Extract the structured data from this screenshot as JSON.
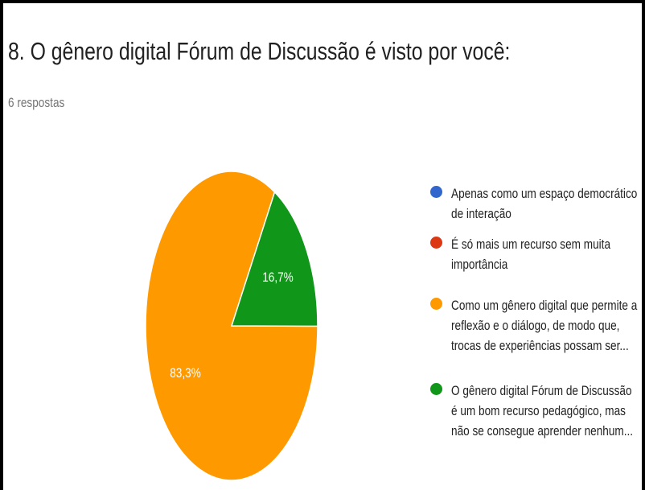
{
  "chart_data": {
    "type": "pie",
    "title": "8. O gênero digital Fórum de Discussão é visto por você:",
    "subtitle": "6 respostas",
    "categories": [
      "Apenas como um espaço democrático de interação",
      "É só mais um recurso sem muita importância",
      "Como um gênero digital que permite a reflexão e o diálogo, de modo que, trocas de experiências possam ser...",
      "O gênero digital Fórum de Discussão é um bom recurso pedagógico, mas não se consegue aprender nenhum..."
    ],
    "values": [
      0,
      0,
      83.3,
      16.7
    ],
    "value_labels": [
      null,
      null,
      "83,3%",
      "16,7%"
    ],
    "colors": [
      "#3366cc",
      "#dc3912",
      "#ff9900",
      "#109618"
    ]
  }
}
